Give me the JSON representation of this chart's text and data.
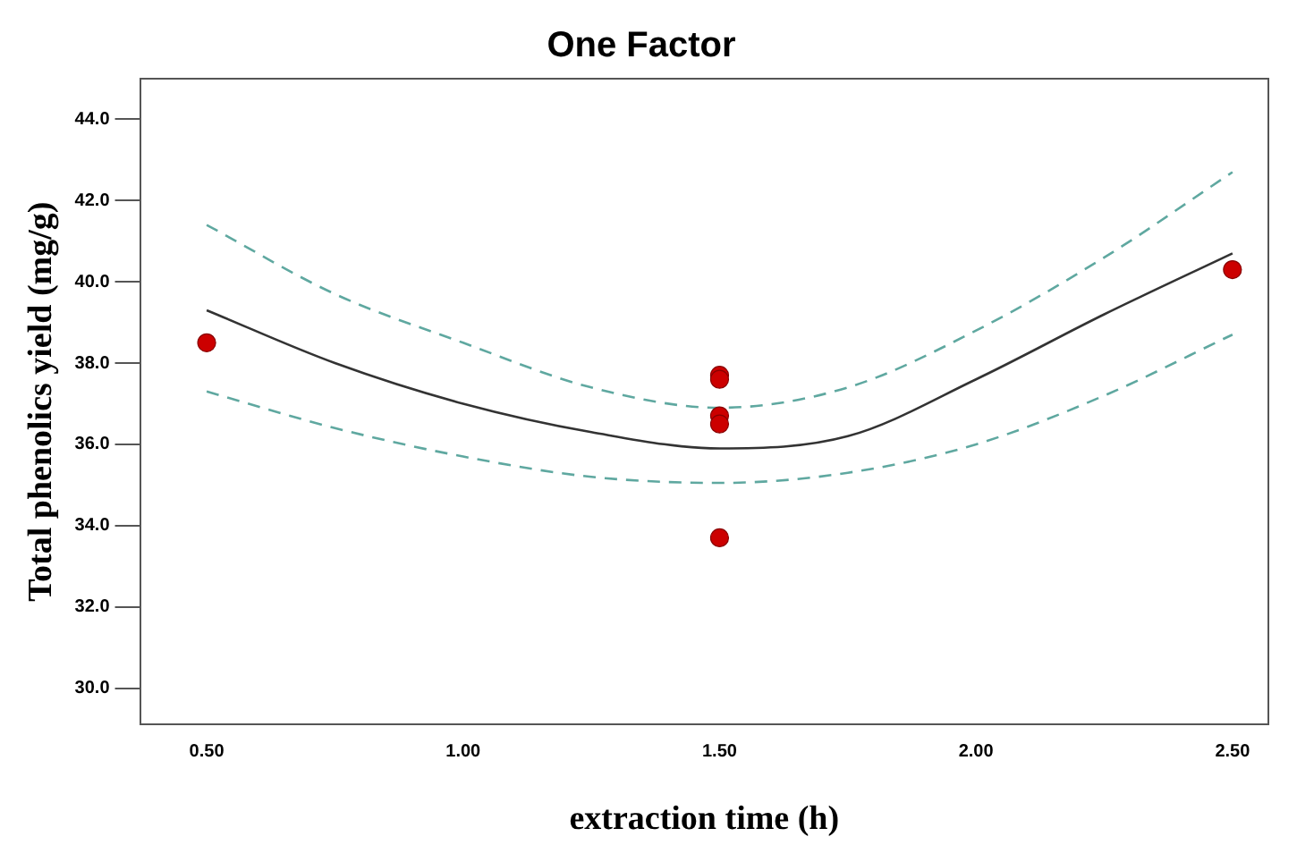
{
  "chart_data": {
    "type": "scatter",
    "title": "One Factor",
    "xlabel": "extraction time (h)",
    "ylabel": "Total phenolics yield (mg/g)",
    "xlim": [
      0.37,
      2.57
    ],
    "ylim": [
      29.1,
      45
    ],
    "xticks": [
      {
        "value": 0.5,
        "label": "0.50"
      },
      {
        "value": 1,
        "label": "1.00"
      },
      {
        "value": 1.5,
        "label": "1.50"
      },
      {
        "value": 2,
        "label": "2.00"
      },
      {
        "value": 2.5,
        "label": "2.50"
      }
    ],
    "yticks": [
      {
        "value": 30,
        "label": "30.0"
      },
      {
        "value": 32,
        "label": "32.0"
      },
      {
        "value": 34,
        "label": "34.0"
      },
      {
        "value": 36,
        "label": "36.0"
      },
      {
        "value": 38,
        "label": "38.0"
      },
      {
        "value": 40,
        "label": "40.0"
      },
      {
        "value": 42,
        "label": "42.0"
      },
      {
        "value": 44,
        "label": "44.0"
      }
    ],
    "grid": false,
    "legend": false,
    "marker": "circle",
    "series": [
      {
        "type": "scatter",
        "color": "#cc0000",
        "x": [
          0.5,
          1.5,
          1.5,
          1.5,
          1.5,
          1.5,
          2.5
        ],
        "values": [
          38.5,
          37.7,
          37.6,
          36.7,
          36.5,
          33.7,
          40.3
        ]
      },
      {
        "type": "line",
        "color": "#333333",
        "line_style": "solid",
        "marker": "none",
        "x": [
          0.5,
          0.75,
          1.0,
          1.25,
          1.5,
          1.75,
          2.0,
          2.25,
          2.5
        ],
        "values": [
          39.3,
          38.0,
          37.0,
          36.3,
          35.9,
          36.2,
          37.6,
          39.2,
          40.7
        ]
      },
      {
        "type": "line",
        "color": "#5fa8a0",
        "line_style": "dashed",
        "marker": "none",
        "x": [
          0.5,
          0.75,
          1.0,
          1.25,
          1.5,
          1.75,
          2.0,
          2.25,
          2.5
        ],
        "values": [
          41.4,
          39.7,
          38.5,
          37.4,
          36.9,
          37.4,
          38.8,
          40.6,
          42.7
        ]
      },
      {
        "type": "line",
        "color": "#5fa8a0",
        "line_style": "dashed",
        "marker": "none",
        "x": [
          0.5,
          0.75,
          1.0,
          1.25,
          1.5,
          1.75,
          2.0,
          2.25,
          2.5
        ],
        "values": [
          37.3,
          36.4,
          35.7,
          35.2,
          35.05,
          35.3,
          36.0,
          37.2,
          38.7
        ]
      }
    ]
  }
}
